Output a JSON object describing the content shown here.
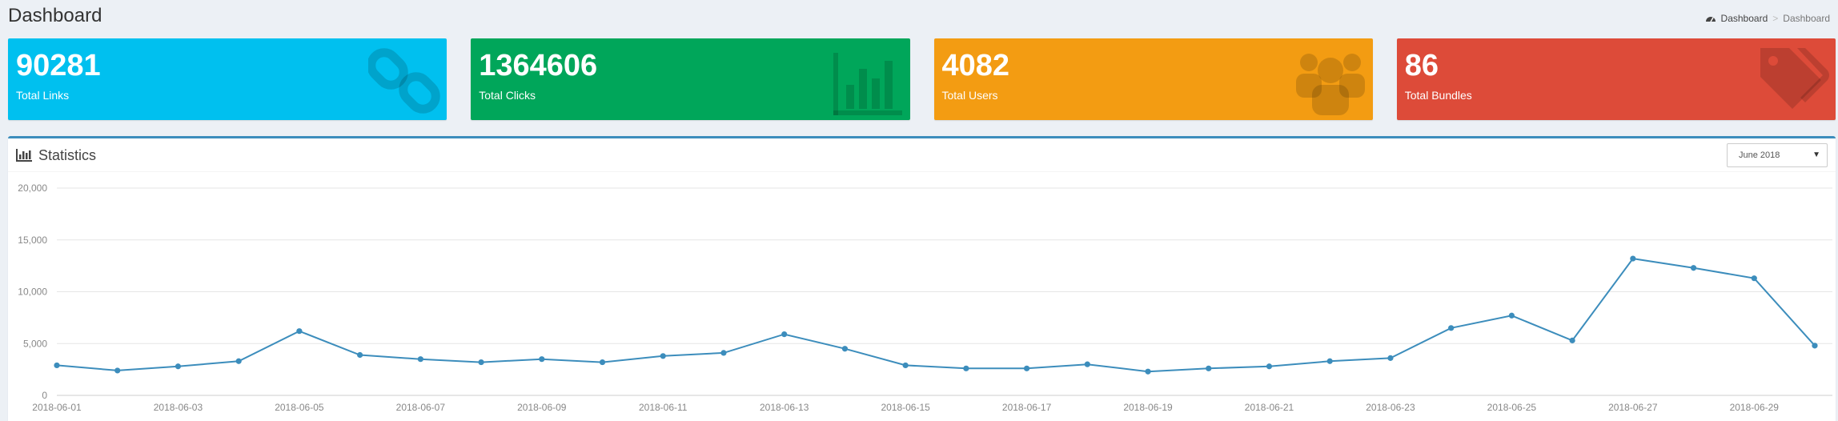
{
  "header": {
    "title": "Dashboard",
    "breadcrumb": [
      "Dashboard",
      "Dashboard"
    ]
  },
  "colors": {
    "aqua": "#00c0ef",
    "green": "#00a65a",
    "yellow": "#f39c12",
    "red": "#dd4b39",
    "line": "#3c8dbc"
  },
  "boxes": [
    {
      "value": "90281",
      "label": "Total Links",
      "icon": "link-icon"
    },
    {
      "value": "1364606",
      "label": "Total Clicks",
      "icon": "bar-chart-icon"
    },
    {
      "value": "4082",
      "label": "Total Users",
      "icon": "users-icon"
    },
    {
      "value": "86",
      "label": "Total Bundles",
      "icon": "tags-icon"
    }
  ],
  "statistics": {
    "title": "Statistics",
    "icon": "bar-chart-icon",
    "selected_month": "June 2018"
  },
  "chart_data": {
    "type": "line",
    "title": "",
    "x": [
      "2018-06-01",
      "2018-06-02",
      "2018-06-03",
      "2018-06-04",
      "2018-06-05",
      "2018-06-06",
      "2018-06-07",
      "2018-06-08",
      "2018-06-09",
      "2018-06-10",
      "2018-06-11",
      "2018-06-12",
      "2018-06-13",
      "2018-06-14",
      "2018-06-15",
      "2018-06-16",
      "2018-06-17",
      "2018-06-18",
      "2018-06-19",
      "2018-06-20",
      "2018-06-21",
      "2018-06-22",
      "2018-06-23",
      "2018-06-24",
      "2018-06-25",
      "2018-06-26",
      "2018-06-27",
      "2018-06-28",
      "2018-06-29",
      "2018-06-30"
    ],
    "x_tick_labels": [
      "2018-06-01",
      "2018-06-03",
      "2018-06-05",
      "2018-06-07",
      "2018-06-09",
      "2018-06-11",
      "2018-06-13",
      "2018-06-15",
      "2018-06-17",
      "2018-06-19",
      "2018-06-21",
      "2018-06-23",
      "2018-06-25",
      "2018-06-27",
      "2018-06-29"
    ],
    "series": [
      {
        "values": [
          2900,
          2400,
          2800,
          3300,
          6200,
          3900,
          3500,
          3200,
          3500,
          3200,
          3800,
          4100,
          5900,
          4500,
          2900,
          2600,
          2600,
          3000,
          2300,
          2600,
          2800,
          3300,
          3600,
          6500,
          7700,
          5300,
          13200,
          12300,
          11300,
          4800
        ]
      }
    ],
    "y_ticks": [
      "0",
      "5,000",
      "10,000",
      "15,000",
      "20,000"
    ],
    "ylim": [
      0,
      20000
    ],
    "grid": true,
    "legend": "none"
  }
}
